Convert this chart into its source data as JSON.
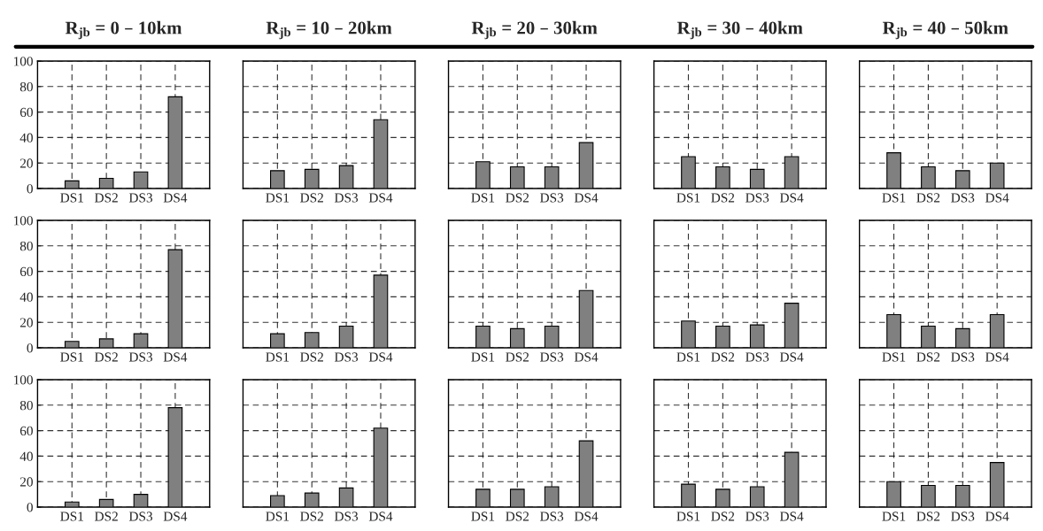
{
  "chart_data": [
    {
      "type": "bar",
      "title": "R$_{jb}$ = 0 – 10km",
      "categories": [
        "DS1",
        "DS2",
        "DS3",
        "DS4"
      ],
      "values": [
        6,
        8,
        13,
        72
      ],
      "color": "#808080",
      "ylim": [
        0,
        100
      ],
      "yticks": [
        0,
        20,
        40,
        60,
        80,
        100
      ],
      "grid": true
    },
    {
      "type": "bar",
      "title": "R$_{jb}$ = 10 – 20km",
      "categories": [
        "DS1",
        "DS2",
        "DS3",
        "DS4"
      ],
      "values": [
        14,
        15,
        18,
        54
      ],
      "color": "#808080",
      "ylim": [
        0,
        100
      ],
      "yticks": [
        0,
        20,
        40,
        60,
        80,
        100
      ],
      "grid": true,
      "tick_labels": "x"
    },
    {
      "type": "bar",
      "title": "R$_{jb}$ = 20 – 30km",
      "categories": [
        "DS1",
        "DS2",
        "DS3",
        "DS4"
      ],
      "values": [
        21,
        17,
        17,
        36
      ],
      "color": "#808080",
      "ylim": [
        0,
        100
      ],
      "yticks": [
        0,
        20,
        40,
        60,
        80,
        100
      ],
      "grid": true,
      "tick_labels": "x"
    },
    {
      "type": "bar",
      "title": "R$_{jb}$ = 30 – 40km",
      "categories": [
        "DS1",
        "DS2",
        "DS3",
        "DS4"
      ],
      "values": [
        25,
        17,
        15,
        25
      ],
      "color": "#808080",
      "ylim": [
        0,
        100
      ],
      "yticks": [
        0,
        20,
        40,
        60,
        80,
        100
      ],
      "grid": true,
      "tick_labels": "x"
    },
    {
      "type": "bar",
      "title": "R$_{jb}$ = 40 – 50km",
      "categories": [
        "DS1",
        "DS2",
        "DS3",
        "DS4"
      ],
      "values": [
        28,
        17,
        14,
        20
      ],
      "color": "#808080",
      "ylim": [
        0,
        100
      ],
      "yticks": [
        0,
        20,
        40,
        60,
        80,
        100
      ],
      "grid": true,
      "tick_labels": "x"
    },
    {
      "type": "bar",
      "categories": [
        "DS1",
        "DS2",
        "DS3",
        "DS4"
      ],
      "values": [
        5,
        7,
        11,
        77
      ],
      "color": "#808080",
      "ylim": [
        0,
        100
      ],
      "yticks": [
        0,
        20,
        40,
        60,
        80,
        100
      ],
      "grid": true
    },
    {
      "type": "bar",
      "categories": [
        "DS1",
        "DS2",
        "DS3",
        "DS4"
      ],
      "values": [
        11,
        12,
        17,
        57
      ],
      "color": "#808080",
      "ylim": [
        0,
        100
      ],
      "yticks": [
        0,
        20,
        40,
        60,
        80,
        100
      ],
      "grid": true,
      "tick_labels": "x"
    },
    {
      "type": "bar",
      "categories": [
        "DS1",
        "DS2",
        "DS3",
        "DS4"
      ],
      "values": [
        17,
        15,
        17,
        45
      ],
      "color": "#808080",
      "ylim": [
        0,
        100
      ],
      "yticks": [
        0,
        20,
        40,
        60,
        80,
        100
      ],
      "grid": true,
      "tick_labels": "x"
    },
    {
      "type": "bar",
      "categories": [
        "DS1",
        "DS2",
        "DS3",
        "DS4"
      ],
      "values": [
        21,
        17,
        18,
        35
      ],
      "color": "#808080",
      "ylim": [
        0,
        100
      ],
      "yticks": [
        0,
        20,
        40,
        60,
        80,
        100
      ],
      "grid": true,
      "tick_labels": "x"
    },
    {
      "type": "bar",
      "categories": [
        "DS1",
        "DS2",
        "DS3",
        "DS4"
      ],
      "values": [
        26,
        17,
        15,
        26
      ],
      "color": "#808080",
      "ylim": [
        0,
        100
      ],
      "yticks": [
        0,
        20,
        40,
        60,
        80,
        100
      ],
      "grid": true,
      "tick_labels": "x"
    },
    {
      "type": "bar",
      "categories": [
        "DS1",
        "DS2",
        "DS3",
        "DS4"
      ],
      "values": [
        4,
        6,
        10,
        78
      ],
      "color": "#808080",
      "ylim": [
        0,
        100
      ],
      "yticks": [
        0,
        20,
        40,
        60,
        80,
        100
      ],
      "grid": true
    },
    {
      "type": "bar",
      "categories": [
        "DS1",
        "DS2",
        "DS3",
        "DS4"
      ],
      "values": [
        9,
        11,
        15,
        62
      ],
      "color": "#808080",
      "ylim": [
        0,
        100
      ],
      "yticks": [
        0,
        20,
        40,
        60,
        80,
        100
      ],
      "grid": true,
      "tick_labels": "x"
    },
    {
      "type": "bar",
      "categories": [
        "DS1",
        "DS2",
        "DS3",
        "DS4"
      ],
      "values": [
        14,
        14,
        16,
        52
      ],
      "color": "#808080",
      "ylim": [
        0,
        100
      ],
      "yticks": [
        0,
        20,
        40,
        60,
        80,
        100
      ],
      "grid": true,
      "tick_labels": "x"
    },
    {
      "type": "bar",
      "categories": [
        "DS1",
        "DS2",
        "DS3",
        "DS4"
      ],
      "values": [
        18,
        14,
        16,
        43
      ],
      "color": "#808080",
      "ylim": [
        0,
        100
      ],
      "yticks": [
        0,
        20,
        40,
        60,
        80,
        100
      ],
      "grid": true,
      "tick_labels": "x"
    },
    {
      "type": "bar",
      "categories": [
        "DS1",
        "DS2",
        "DS3",
        "DS4"
      ],
      "values": [
        20,
        17,
        17,
        35
      ],
      "color": "#808080",
      "ylim": [
        0,
        100
      ],
      "yticks": [
        0,
        20,
        40,
        60,
        80,
        100
      ],
      "grid": true,
      "tick_labels": "x"
    }
  ]
}
